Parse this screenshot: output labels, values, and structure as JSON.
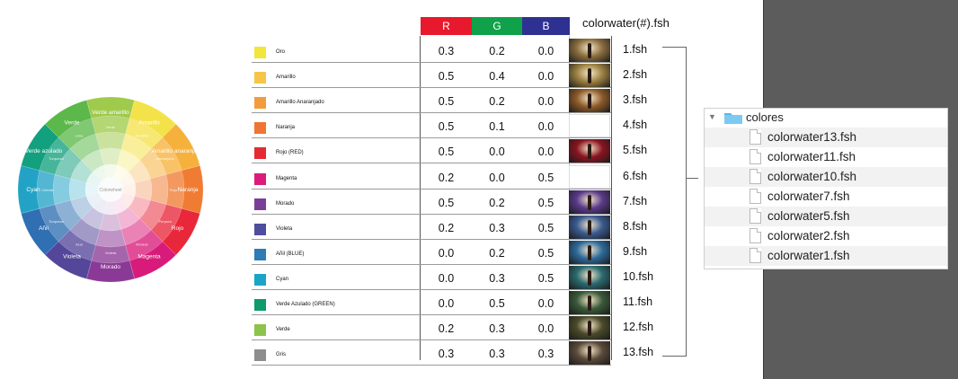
{
  "wheel": {
    "center_label": "Colorwheel",
    "labels": [
      "Verde amarillo",
      "Amarillo",
      "Amarillo anaranjado",
      "Naranja",
      "Rojo",
      "Magenta",
      "Morado",
      "Violeta",
      "Añil",
      "Cyan",
      "Verde azulado",
      "Verde"
    ],
    "inner_labels": [
      "Verde",
      "Amarillo",
      "Anaranjado",
      "Rojo",
      "Púrpura",
      "Morado",
      "Violeta",
      "Azul",
      "Turquesa",
      "Celeste",
      "Turquesa",
      "Lima"
    ]
  },
  "table": {
    "headers": {
      "r": "R",
      "g": "G",
      "b": "B",
      "files": "colorwater(#).fsh"
    },
    "header_colors": {
      "r": "#e8192c",
      "g": "#10a24a",
      "b": "#2e3192"
    },
    "rows": [
      {
        "name": "Oro",
        "color": "#f2e53c",
        "r": "0.3",
        "g": "0.2",
        "b": "0.0",
        "file": "1.fsh",
        "thumb": "#8a6d3e",
        "has_thumb": true
      },
      {
        "name": "Amarillo",
        "color": "#f6c548",
        "r": "0.5",
        "g": "0.4",
        "b": "0.0",
        "file": "2.fsh",
        "thumb": "#9b8040",
        "has_thumb": true
      },
      {
        "name": "Amarillo Anaranjado",
        "color": "#f39c3c",
        "r": "0.5",
        "g": "0.2",
        "b": "0.0",
        "file": "3.fsh",
        "thumb": "#8c5a2a",
        "has_thumb": true
      },
      {
        "name": "Naranja",
        "color": "#f07533",
        "r": "0.5",
        "g": "0.1",
        "b": "0.0",
        "file": "4.fsh",
        "thumb": "#ffffff",
        "has_thumb": false
      },
      {
        "name": "Rojo (RED)",
        "color": "#e62a33",
        "r": "0.5",
        "g": "0.0",
        "b": "0.0",
        "file": "5.fsh",
        "thumb": "#8a1420",
        "has_thumb": true
      },
      {
        "name": "Magenta",
        "color": "#dc1c7c",
        "r": "0.2",
        "g": "0.0",
        "b": "0.5",
        "file": "6.fsh",
        "thumb": "#ffffff",
        "has_thumb": false
      },
      {
        "name": "Morado",
        "color": "#7a3e98",
        "r": "0.5",
        "g": "0.2",
        "b": "0.5",
        "file": "7.fsh",
        "thumb": "#5a3a8a",
        "has_thumb": true
      },
      {
        "name": "Violeta",
        "color": "#4e4d9e",
        "r": "0.2",
        "g": "0.3",
        "b": "0.5",
        "file": "8.fsh",
        "thumb": "#3a5a90",
        "has_thumb": true
      },
      {
        "name": "Añil (BLUE)",
        "color": "#2d7cb5",
        "r": "0.0",
        "g": "0.2",
        "b": "0.5",
        "file": "9.fsh",
        "thumb": "#2d6a9a",
        "has_thumb": true
      },
      {
        "name": "Cyan",
        "color": "#1aa5c8",
        "r": "0.0",
        "g": "0.3",
        "b": "0.5",
        "file": "10.fsh",
        "thumb": "#2a6a70",
        "has_thumb": true
      },
      {
        "name": "Verde Azulado (GREEN)",
        "color": "#0f9a6a",
        "r": "0.0",
        "g": "0.5",
        "b": "0.0",
        "file": "11.fsh",
        "thumb": "#3a5a3a",
        "has_thumb": true
      },
      {
        "name": "Verde",
        "color": "#8cc34a",
        "r": "0.2",
        "g": "0.3",
        "b": "0.0",
        "file": "12.fsh",
        "thumb": "#4a4a2a",
        "has_thumb": true
      },
      {
        "name": "Gris",
        "color": "#8e8e8e",
        "r": "0.3",
        "g": "0.3",
        "b": "0.3",
        "file": "13.fsh",
        "thumb": "#5a4a3a",
        "has_thumb": true
      }
    ]
  },
  "finder": {
    "folder": "colores",
    "files": [
      "colorwater13.fsh",
      "colorwater11.fsh",
      "colorwater10.fsh",
      "colorwater7.fsh",
      "colorwater5.fsh",
      "colorwater2.fsh",
      "colorwater1.fsh"
    ]
  }
}
